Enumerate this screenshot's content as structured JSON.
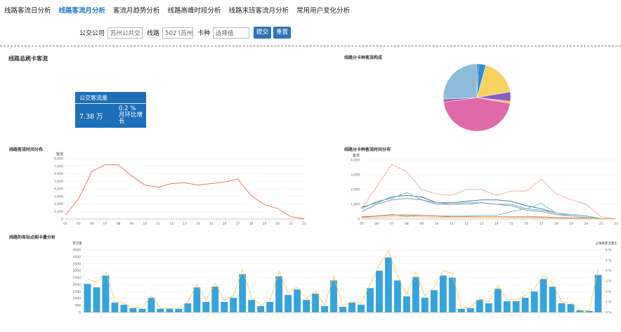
{
  "tabs": [
    {
      "label": "线路客流日分析",
      "active": false
    },
    {
      "label": "线路客流月分析",
      "active": true
    },
    {
      "label": "客流月趋势分析",
      "active": false
    },
    {
      "label": "线路高峰时段分析",
      "active": false
    },
    {
      "label": "线路末班客流月分析",
      "active": false
    },
    {
      "label": "常用用户变化分析",
      "active": false
    }
  ],
  "filter": {
    "company_label": "公交公司",
    "company_value": "苏州公共交",
    "line_label": "线路",
    "line_value": "502 (苏州",
    "card_label": "卡种",
    "card_placeholder": "选择值",
    "submit_label": "提交",
    "reset_label": "重置"
  },
  "panels": {
    "total_title": "线路总刷卡客流",
    "pie_title": "线路分卡种客流构成",
    "hourly_title": "线路客流时间分布",
    "cardtype_hourly_title": "线路分卡种客流时间分布",
    "stops_title": "线路的各站点刷卡量分析"
  },
  "kpi": {
    "title": "公交客流量",
    "value": "7.38 万",
    "change": "0.2 %",
    "change_label": "月环比增长"
  },
  "colors": {
    "accent": "#1e78c8",
    "card": "#1d6fb8",
    "line": "#e07a6a",
    "bar": "#36a3dc",
    "bar_line": "#f3c64a"
  },
  "chart_data": [
    {
      "type": "pie",
      "slices": [
        {
          "value": 0.8,
          "color": "#1c5fa0"
        },
        {
          "value": 3.5,
          "color": "#2e8dd0"
        },
        {
          "value": 18.0,
          "color": "#f5d35e"
        },
        {
          "value": 4.5,
          "color": "#8a5cc6"
        },
        {
          "value": 1.0,
          "color": "#f0c24a"
        },
        {
          "value": 45.0,
          "color": "#e06aa8"
        },
        {
          "value": 1.5,
          "color": "#a064b8"
        },
        {
          "value": 25.7,
          "color": "#8ebcd8"
        }
      ]
    },
    {
      "type": "line",
      "ylabel": "客流",
      "yticks": [
        "0",
        "1,000",
        "2,000",
        "3,000",
        "4,000",
        "5,000",
        "6,000",
        "7,000",
        "8,000"
      ],
      "ylim": [
        0,
        8000
      ],
      "categories": [
        "04",
        "05",
        "06",
        "07",
        "08",
        "09",
        "10",
        "11",
        "12",
        "13",
        "14",
        "15",
        "16",
        "17",
        "18",
        "19",
        "20",
        "21",
        "22"
      ],
      "values": [
        500,
        2700,
        6300,
        7200,
        7200,
        5700,
        4500,
        4200,
        4700,
        4800,
        4500,
        4700,
        4900,
        5300,
        3100,
        1900,
        1400,
        300,
        50
      ]
    },
    {
      "type": "line",
      "ylabel": "客流",
      "yticks": [
        "0",
        "1,000",
        "2,000",
        "3,000",
        "4,000"
      ],
      "ylim": [
        0,
        4000
      ],
      "categories": [
        "05",
        "06",
        "07",
        "08",
        "09",
        "10",
        "11",
        "12",
        "13",
        "14",
        "15",
        "16",
        "17",
        "18",
        "19",
        "20",
        "21",
        "22"
      ],
      "series": [
        {
          "color": "#e8b4a8",
          "values": [
            700,
            2200,
            3700,
            3200,
            2000,
            1700,
            1600,
            2000,
            2000,
            1600,
            1900,
            1900,
            2700,
            1700,
            1300,
            1000,
            150,
            0
          ]
        },
        {
          "color": "#4d7a9a",
          "values": [
            800,
            1100,
            1500,
            1600,
            1500,
            1100,
            1100,
            1200,
            1300,
            1300,
            1200,
            900,
            700,
            400,
            300,
            200,
            30,
            0
          ]
        },
        {
          "color": "#7ab0d0",
          "values": [
            700,
            1200,
            1400,
            1800,
            1300,
            1100,
            1000,
            1000,
            1100,
            1000,
            1000,
            700,
            600,
            400,
            300,
            200,
            30,
            0
          ]
        },
        {
          "color": "#8a9ab0",
          "values": [
            500,
            1000,
            1300,
            1400,
            1300,
            1000,
            1000,
            1100,
            1100,
            1000,
            900,
            600,
            500,
            300,
            200,
            100,
            20,
            0
          ]
        },
        {
          "color": "#7ac8c0",
          "values": [
            100,
            200,
            250,
            300,
            250,
            200,
            200,
            200,
            250,
            250,
            500,
            700,
            1050,
            400,
            200,
            100,
            10,
            0
          ]
        },
        {
          "color": "#e07060",
          "values": [
            150,
            200,
            300,
            200,
            250,
            200,
            150,
            150,
            150,
            150,
            150,
            150,
            150,
            100,
            80,
            60,
            10,
            0
          ]
        },
        {
          "color": "#f0c060",
          "values": [
            80,
            100,
            150,
            150,
            150,
            120,
            120,
            120,
            120,
            120,
            100,
            100,
            80,
            60,
            40,
            30,
            5,
            0
          ]
        }
      ]
    },
    {
      "type": "bar",
      "ylabel_left": "客流量",
      "ylabel_right": "占线路客流量比",
      "yticks_left": [
        "0",
        "500",
        "1000",
        "1500",
        "2000",
        "2500",
        "3000",
        "3500",
        "4000",
        "4500"
      ],
      "yticks_right": [
        "0 %",
        "1 %",
        "2 %",
        "3 %",
        "4 %",
        "5 %",
        "6 %"
      ],
      "ylim": [
        0,
        4500
      ],
      "values": [
        2050,
        1800,
        2650,
        700,
        550,
        300,
        250,
        1050,
        250,
        250,
        250,
        650,
        1800,
        750,
        1850,
        750,
        1050,
        2750,
        900,
        450,
        750,
        2600,
        1250,
        1650,
        900,
        1350,
        450,
        2300,
        400,
        700,
        550,
        1750,
        3000,
        3950,
        2300,
        1150,
        2550,
        1050,
        1600,
        2650,
        2500,
        250,
        300,
        900,
        650,
        1700,
        800,
        800,
        1050,
        1500,
        2400,
        1850,
        650,
        600,
        150,
        100,
        2700
      ],
      "line_values": [
        2400,
        2150,
        2900,
        800,
        650,
        350,
        300,
        1200,
        300,
        300,
        300,
        750,
        2050,
        850,
        2100,
        850,
        1200,
        3100,
        1050,
        500,
        850,
        2950,
        1400,
        1850,
        1000,
        1550,
        500,
        2600,
        450,
        800,
        650,
        2000,
        3400,
        4450,
        2600,
        1300,
        2900,
        1200,
        1800,
        3000,
        2800,
        300,
        350,
        1000,
        750,
        1950,
        900,
        900,
        1200,
        1700,
        2700,
        2100,
        750,
        700,
        150,
        100,
        3100
      ]
    }
  ]
}
